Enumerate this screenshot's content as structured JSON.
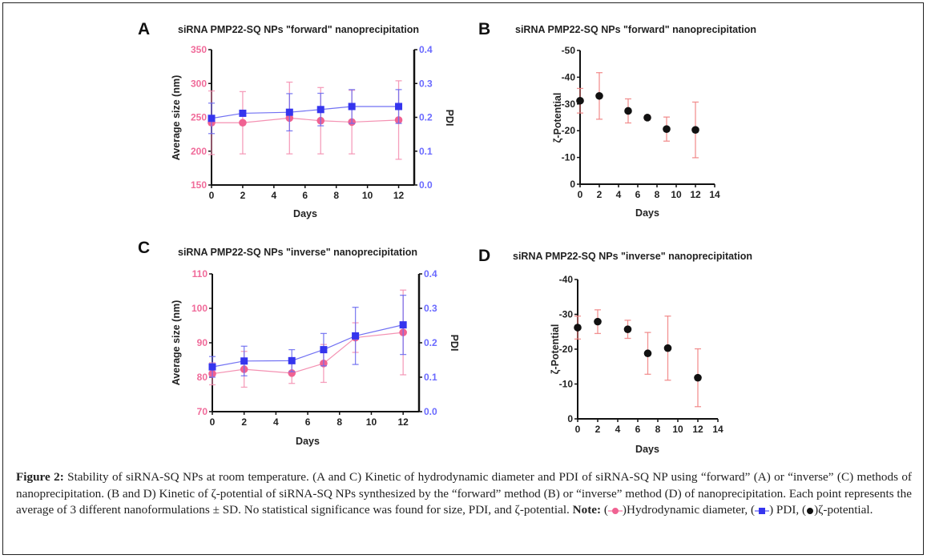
{
  "figure": {
    "caption": {
      "label": "Figure 2:",
      "text": " Stability of siRNA-SQ NPs at room temperature. (A and C) Kinetic of hydrodynamic diameter and PDI of siRNA-SQ NP using “forward” (A) or “inverse” (C) methods of nanoprecipitation. (B and D) Kinetic of ζ-potential of siRNA-SQ NPs synthesized by the “forward” method (B) or “inverse” method (D) of nanoprecipitation. Each point represents the average of 3 different nanoformulations ± SD. No statistical significance was found for size, PDI, and ζ-potential. ",
      "note_label": "Note:",
      "legend_size": "Hydrodynamic diameter,",
      "legend_pdi": " PDI,",
      "legend_zeta": "ζ-potential."
    },
    "colors": {
      "size": "#f06292",
      "pdi": "#3535ee",
      "zeta": "#111111",
      "zeta_err": "#f08080",
      "size_tick": "#f06b9a",
      "pdi_tick": "#6a6aff"
    }
  },
  "chart_data": [
    {
      "panel": "A",
      "type": "line",
      "title": "siRNA PMP22-SQ NPs \"forward\" nanoprecipitation",
      "xlabel": "Days",
      "ylabel": "Average size (nm)",
      "y2label": "PDI",
      "xlim": [
        0,
        13
      ],
      "xticks": [
        0,
        2,
        4,
        6,
        8,
        10,
        12
      ],
      "ylim": [
        150,
        350
      ],
      "yticks": [
        150,
        200,
        250,
        300,
        350
      ],
      "y2lim": [
        0,
        0.4
      ],
      "y2ticks": [
        "0.0",
        "0.1",
        "0.2",
        "0.3",
        "0.4"
      ],
      "x": [
        0,
        2,
        5,
        7,
        9,
        12
      ],
      "series": [
        {
          "name": "Hydrodynamic diameter",
          "axis": "left",
          "marker": "circle",
          "values": [
            242,
            242,
            249,
            245,
            243,
            246
          ],
          "sd": [
            47,
            46,
            53,
            49,
            47,
            58
          ]
        },
        {
          "name": "PDI",
          "axis": "right",
          "marker": "square",
          "values": [
            0.197,
            0.212,
            0.215,
            0.223,
            0.232,
            0.232
          ],
          "sd": [
            0.045,
            0.008,
            0.055,
            0.048,
            0.05,
            0.05
          ]
        }
      ]
    },
    {
      "panel": "B",
      "type": "scatter",
      "title": "siRNA PMP22-SQ NPs \"forward\" nanoprecipitation",
      "xlabel": "Days",
      "ylabel": "ζ-Potential",
      "xlim": [
        0,
        14
      ],
      "xticks": [
        0,
        2,
        4,
        6,
        8,
        10,
        12,
        14
      ],
      "ylim": [
        0,
        -50
      ],
      "yticks": [
        0,
        -10,
        -20,
        -30,
        -40,
        -50
      ],
      "x": [
        0,
        2,
        5,
        7,
        9,
        12
      ],
      "series": [
        {
          "name": "ζ-potential",
          "values": [
            -31.2,
            -33.0,
            -27.4,
            -24.9,
            -20.6,
            -20.3
          ],
          "sd": [
            4.6,
            8.7,
            4.5,
            0.8,
            4.5,
            10.4
          ]
        }
      ]
    },
    {
      "panel": "C",
      "type": "line",
      "title": "siRNA PMP22-SQ NPs \"inverse\" nanoprecipitation",
      "xlabel": "Days",
      "ylabel": "Average size (nm)",
      "y2label": "PDI",
      "xlim": [
        0,
        13
      ],
      "xticks": [
        0,
        2,
        4,
        6,
        8,
        10,
        12
      ],
      "ylim": [
        70,
        110
      ],
      "yticks": [
        70,
        80,
        90,
        100,
        110
      ],
      "y2lim": [
        0,
        0.4
      ],
      "y2ticks": [
        "0.0",
        "0.1",
        "0.2",
        "0.3",
        "0.4"
      ],
      "x": [
        0,
        2,
        5,
        7,
        9,
        12
      ],
      "series": [
        {
          "name": "Hydrodynamic diameter",
          "axis": "left",
          "marker": "circle",
          "values": [
            81.0,
            82.3,
            81.2,
            84.0,
            91.5,
            93.0
          ],
          "sd": [
            3.2,
            5.2,
            3.0,
            5.5,
            4.3,
            12.3
          ]
        },
        {
          "name": "PDI",
          "axis": "right",
          "marker": "square",
          "values": [
            0.13,
            0.147,
            0.148,
            0.18,
            0.22,
            0.252
          ],
          "sd": [
            0.03,
            0.043,
            0.032,
            0.047,
            0.083,
            0.086
          ]
        }
      ]
    },
    {
      "panel": "D",
      "type": "scatter",
      "title": "siRNA PMP22-SQ NPs \"inverse\" nanoprecipitation",
      "xlabel": "Days",
      "ylabel": "ζ-Potential",
      "xlim": [
        0,
        14
      ],
      "xticks": [
        0,
        2,
        4,
        6,
        8,
        10,
        12,
        14
      ],
      "ylim": [
        0,
        -40
      ],
      "yticks": [
        0,
        -10,
        -20,
        -30,
        -40
      ],
      "x": [
        0,
        2,
        5,
        7,
        9,
        12
      ],
      "series": [
        {
          "name": "ζ-potential",
          "values": [
            -26.2,
            -27.9,
            -25.7,
            -18.8,
            -20.3,
            -11.8
          ],
          "sd": [
            3.3,
            3.4,
            2.6,
            6.0,
            9.2,
            8.3
          ]
        }
      ]
    }
  ]
}
